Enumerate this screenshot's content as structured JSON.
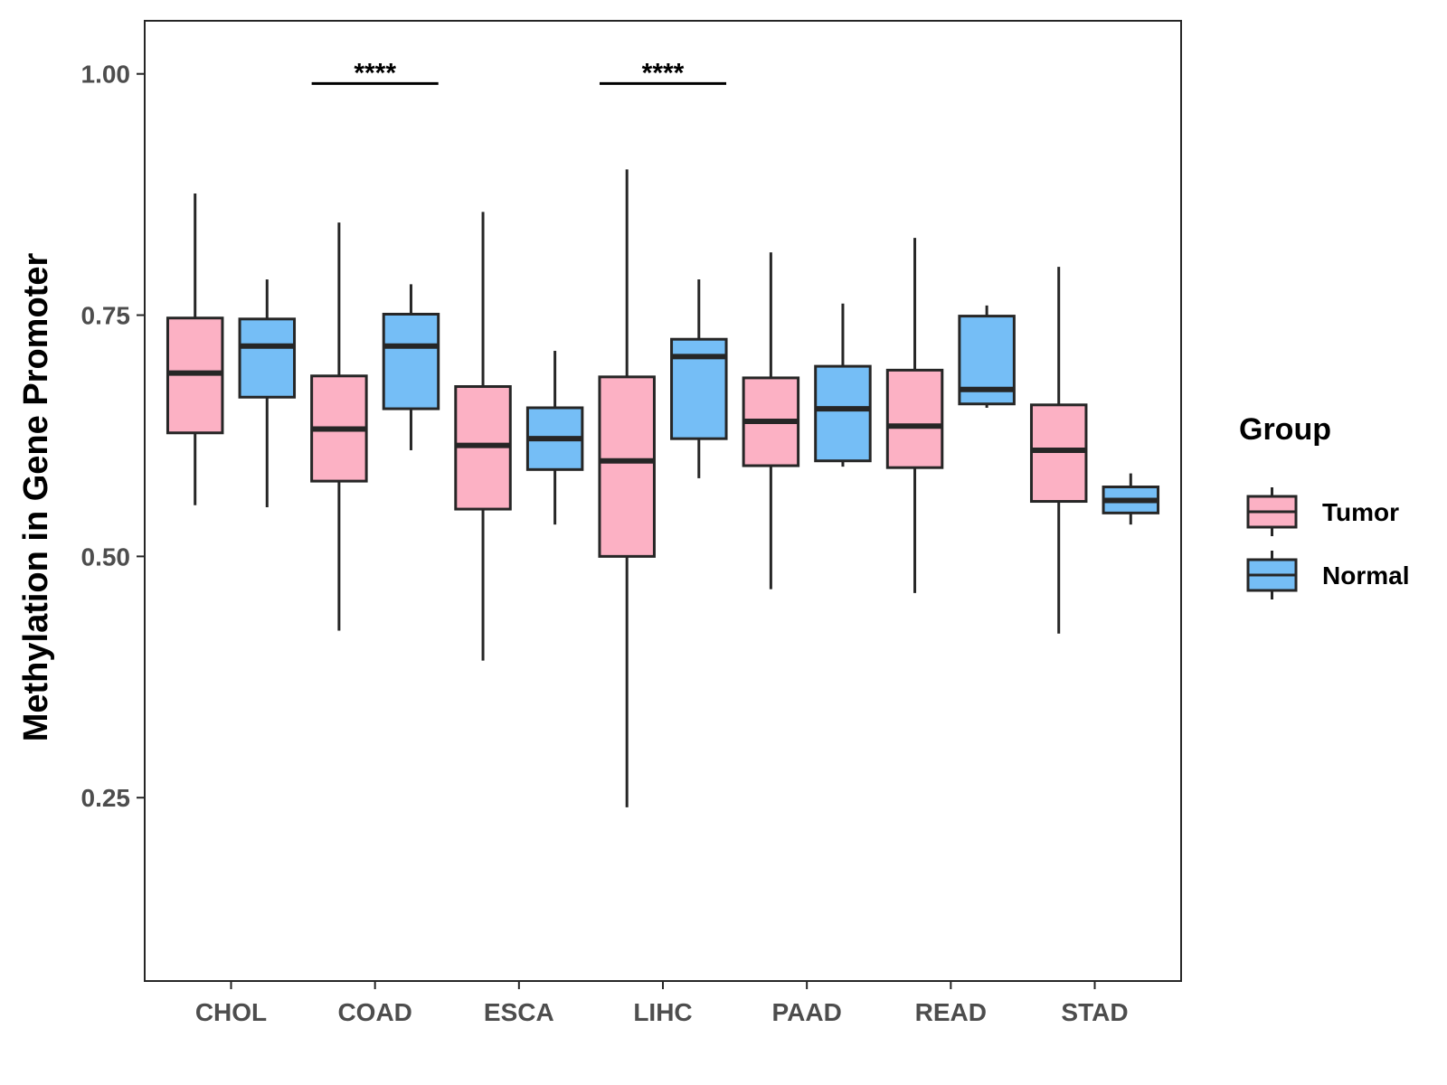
{
  "chart_data": {
    "type": "boxplot",
    "title": "",
    "xlabel": "",
    "ylabel": "Methylation in Gene Promoter",
    "ylim": [
      0.06,
      1.055
    ],
    "yticks": [
      0.25,
      0.5,
      0.75,
      1.0
    ],
    "ytick_labels": [
      "0.25",
      "0.50",
      "0.75",
      "1.00"
    ],
    "grid": false,
    "legend": {
      "title": "Group",
      "position": "right"
    },
    "categories": [
      "CHOL",
      "COAD",
      "ESCA",
      "LIHC",
      "PAAD",
      "READ",
      "STAD"
    ],
    "series": [
      {
        "name": "Tumor",
        "color": "#FCB1C4",
        "boxes": [
          {
            "category": "CHOL",
            "whisker_low": 0.553,
            "q1": 0.628,
            "median": 0.69,
            "q3": 0.747,
            "whisker_high": 0.876
          },
          {
            "category": "COAD",
            "whisker_low": 0.423,
            "q1": 0.578,
            "median": 0.632,
            "q3": 0.687,
            "whisker_high": 0.846
          },
          {
            "category": "ESCA",
            "whisker_low": 0.392,
            "q1": 0.549,
            "median": 0.615,
            "q3": 0.676,
            "whisker_high": 0.857
          },
          {
            "category": "LIHC",
            "whisker_low": 0.24,
            "q1": 0.5,
            "median": 0.599,
            "q3": 0.686,
            "whisker_high": 0.901
          },
          {
            "category": "PAAD",
            "whisker_low": 0.466,
            "q1": 0.594,
            "median": 0.64,
            "q3": 0.685,
            "whisker_high": 0.815
          },
          {
            "category": "READ",
            "whisker_low": 0.462,
            "q1": 0.592,
            "median": 0.635,
            "q3": 0.693,
            "whisker_high": 0.83
          },
          {
            "category": "STAD",
            "whisker_low": 0.42,
            "q1": 0.557,
            "median": 0.61,
            "q3": 0.657,
            "whisker_high": 0.8
          }
        ]
      },
      {
        "name": "Normal",
        "color": "#75BEF6",
        "boxes": [
          {
            "category": "CHOL",
            "whisker_low": 0.551,
            "q1": 0.665,
            "median": 0.718,
            "q3": 0.746,
            "whisker_high": 0.787
          },
          {
            "category": "COAD",
            "whisker_low": 0.61,
            "q1": 0.653,
            "median": 0.718,
            "q3": 0.751,
            "whisker_high": 0.782
          },
          {
            "category": "ESCA",
            "whisker_low": 0.533,
            "q1": 0.59,
            "median": 0.622,
            "q3": 0.654,
            "whisker_high": 0.713
          },
          {
            "category": "LIHC",
            "whisker_low": 0.581,
            "q1": 0.622,
            "median": 0.707,
            "q3": 0.725,
            "whisker_high": 0.787
          },
          {
            "category": "PAAD",
            "whisker_low": 0.593,
            "q1": 0.599,
            "median": 0.653,
            "q3": 0.697,
            "whisker_high": 0.762
          },
          {
            "category": "READ",
            "whisker_low": 0.654,
            "q1": 0.658,
            "median": 0.673,
            "q3": 0.749,
            "whisker_high": 0.76
          },
          {
            "category": "STAD",
            "whisker_low": 0.533,
            "q1": 0.545,
            "median": 0.558,
            "q3": 0.572,
            "whisker_high": 0.586
          }
        ]
      }
    ],
    "annotations": [
      {
        "category": "COAD",
        "text": "****",
        "y": 0.99
      },
      {
        "category": "LIHC",
        "text": "****",
        "y": 0.99
      }
    ]
  }
}
